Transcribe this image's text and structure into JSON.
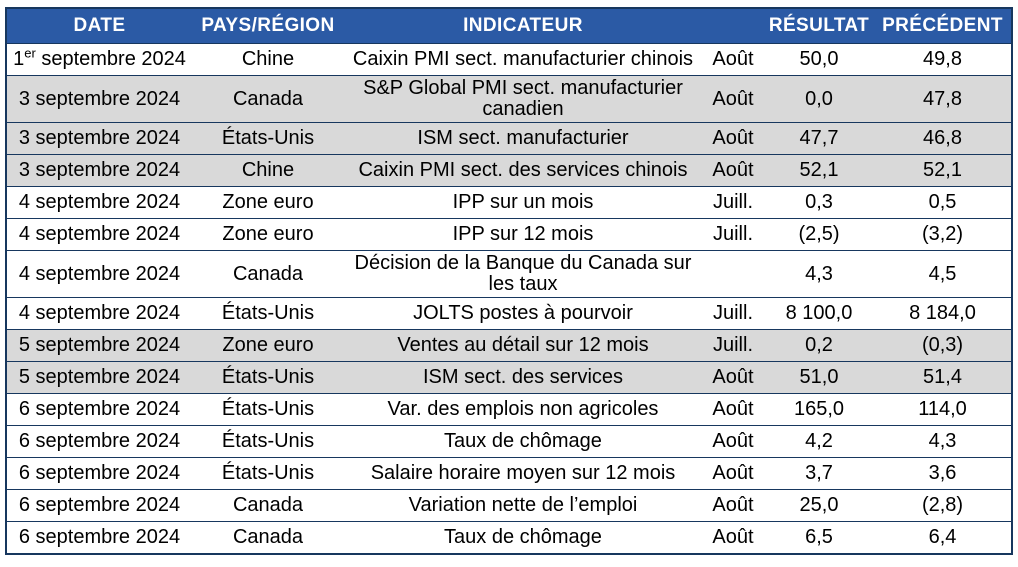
{
  "colors": {
    "header_bg": "#2B5AA5",
    "header_text": "#FFFFFF",
    "border": "#17375E",
    "row_shaded": "#D9D9D9",
    "text": "#000000",
    "page_bg": "#FFFFFF"
  },
  "table": {
    "columns": [
      {
        "key": "date",
        "label": "DATE"
      },
      {
        "key": "country",
        "label": "PAYS/RÉGION"
      },
      {
        "key": "indicator",
        "label": "INDICATEUR"
      },
      {
        "key": "period",
        "label": ""
      },
      {
        "key": "result",
        "label": "RÉSULTAT"
      },
      {
        "key": "previous",
        "label": "PRÉCÉDENT"
      }
    ],
    "rows": [
      {
        "date": "1",
        "date_sup": "er",
        "date_rest": " septembre 2024",
        "country": "Chine",
        "indicator": "Caixin PMI sect. manufacturier chinois",
        "period": "Août",
        "result": "50,0",
        "previous": "49,8",
        "shaded": false
      },
      {
        "date": "3 septembre 2024",
        "date_sup": "",
        "date_rest": "",
        "country": "Canada",
        "indicator": "S&P Global PMI sect. manufacturier canadien",
        "period": "Août",
        "result": "0,0",
        "previous": "47,8",
        "shaded": true
      },
      {
        "date": "3 septembre 2024",
        "date_sup": "",
        "date_rest": "",
        "country": "États-Unis",
        "indicator": "ISM sect. manufacturier",
        "period": "Août",
        "result": "47,7",
        "previous": "46,8",
        "shaded": true
      },
      {
        "date": "3 septembre 2024",
        "date_sup": "",
        "date_rest": "",
        "country": "Chine",
        "indicator": "Caixin PMI sect. des services chinois",
        "period": "Août",
        "result": "52,1",
        "previous": "52,1",
        "shaded": true
      },
      {
        "date": "4 septembre 2024",
        "date_sup": "",
        "date_rest": "",
        "country": "Zone euro",
        "indicator": "IPP sur un mois",
        "period": "Juill.",
        "result": "0,3",
        "previous": "0,5",
        "shaded": false
      },
      {
        "date": "4 septembre 2024",
        "date_sup": "",
        "date_rest": "",
        "country": "Zone euro",
        "indicator": "IPP sur 12 mois",
        "period": "Juill.",
        "result": "(2,5)",
        "previous": "(3,2)",
        "shaded": false
      },
      {
        "date": "4 septembre 2024",
        "date_sup": "",
        "date_rest": "",
        "country": "Canada",
        "indicator": "Décision de la Banque du Canada sur les taux",
        "period": "",
        "result": "4,3",
        "previous": "4,5",
        "shaded": false
      },
      {
        "date": "4 septembre 2024",
        "date_sup": "",
        "date_rest": "",
        "country": "États-Unis",
        "indicator": "JOLTS postes à pourvoir",
        "period": "Juill.",
        "result": "8 100,0",
        "previous": "8 184,0",
        "shaded": false
      },
      {
        "date": "5 septembre 2024",
        "date_sup": "",
        "date_rest": "",
        "country": "Zone euro",
        "indicator": "Ventes au détail sur 12 mois",
        "period": "Juill.",
        "result": "0,2",
        "previous": "(0,3)",
        "shaded": true
      },
      {
        "date": "5 septembre 2024",
        "date_sup": "",
        "date_rest": "",
        "country": "États-Unis",
        "indicator": "ISM sect. des services",
        "period": "Août",
        "result": "51,0",
        "previous": "51,4",
        "shaded": true
      },
      {
        "date": "6 septembre 2024",
        "date_sup": "",
        "date_rest": "",
        "country": "États-Unis",
        "indicator": "Var. des emplois non agricoles",
        "period": "Août",
        "result": "165,0",
        "previous": "114,0",
        "shaded": false
      },
      {
        "date": "6 septembre 2024",
        "date_sup": "",
        "date_rest": "",
        "country": "États-Unis",
        "indicator": "Taux de chômage",
        "period": "Août",
        "result": "4,2",
        "previous": "4,3",
        "shaded": false
      },
      {
        "date": "6 septembre 2024",
        "date_sup": "",
        "date_rest": "",
        "country": "États-Unis",
        "indicator": "Salaire horaire moyen sur 12 mois",
        "period": "Août",
        "result": "3,7",
        "previous": "3,6",
        "shaded": false
      },
      {
        "date": "6 septembre 2024",
        "date_sup": "",
        "date_rest": "",
        "country": "Canada",
        "indicator": "Variation nette de l’emploi",
        "period": "Août",
        "result": "25,0",
        "previous": "(2,8)",
        "shaded": false
      },
      {
        "date": "6 septembre 2024",
        "date_sup": "",
        "date_rest": "",
        "country": "Canada",
        "indicator": "Taux de chômage",
        "period": "Août",
        "result": "6,5",
        "previous": "6,4",
        "shaded": false
      }
    ]
  }
}
